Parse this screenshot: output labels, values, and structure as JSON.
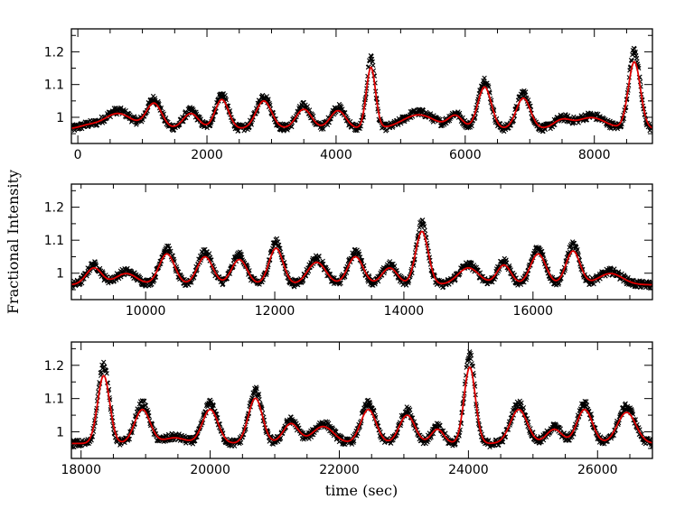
{
  "chart_data": {
    "type": "line",
    "ylabel": "Fractional Intensity",
    "xlabel": "time (sec)",
    "colors": {
      "observed": "#000000",
      "model": "#e00000"
    },
    "panels": [
      {
        "xlim": [
          -100,
          8900
        ],
        "ylim": [
          0.92,
          1.27
        ],
        "xticks": [
          0,
          2000,
          4000,
          6000,
          8000
        ],
        "yticks": [
          1,
          1.1,
          1.2
        ],
        "peaks": [
          {
            "t": 150,
            "amp": 0.01,
            "w": 120
          },
          {
            "t": 620,
            "amp": 0.055,
            "w": 200
          },
          {
            "t": 1180,
            "amp": 0.09,
            "w": 110
          },
          {
            "t": 1750,
            "amp": 0.055,
            "w": 110
          },
          {
            "t": 2230,
            "amp": 0.105,
            "w": 95
          },
          {
            "t": 2880,
            "amp": 0.1,
            "w": 110
          },
          {
            "t": 3500,
            "amp": 0.07,
            "w": 110
          },
          {
            "t": 4030,
            "amp": 0.065,
            "w": 110
          },
          {
            "t": 4540,
            "amp": 0.22,
            "w": 65
          },
          {
            "t": 5280,
            "amp": 0.05,
            "w": 230
          },
          {
            "t": 5850,
            "amp": 0.045,
            "w": 100
          },
          {
            "t": 6300,
            "amp": 0.15,
            "w": 95
          },
          {
            "t": 6900,
            "amp": 0.11,
            "w": 100
          },
          {
            "t": 7500,
            "amp": 0.03,
            "w": 120
          },
          {
            "t": 7950,
            "amp": 0.04,
            "w": 200
          },
          {
            "t": 8620,
            "amp": 0.24,
            "w": 85
          }
        ]
      },
      {
        "xlim": [
          8850,
          17850
        ],
        "ylim": [
          0.92,
          1.27
        ],
        "xticks": [
          10000,
          12000,
          14000,
          16000
        ],
        "yticks": [
          1,
          1.1,
          1.2
        ],
        "peaks": [
          {
            "t": 9200,
            "amp": 0.06,
            "w": 110
          },
          {
            "t": 9700,
            "amp": 0.04,
            "w": 150
          },
          {
            "t": 10330,
            "amp": 0.11,
            "w": 110
          },
          {
            "t": 10920,
            "amp": 0.1,
            "w": 110
          },
          {
            "t": 11450,
            "amp": 0.09,
            "w": 110
          },
          {
            "t": 12020,
            "amp": 0.13,
            "w": 100
          },
          {
            "t": 12650,
            "amp": 0.08,
            "w": 130
          },
          {
            "t": 13250,
            "amp": 0.1,
            "w": 110
          },
          {
            "t": 13780,
            "amp": 0.06,
            "w": 110
          },
          {
            "t": 14280,
            "amp": 0.19,
            "w": 90
          },
          {
            "t": 15000,
            "amp": 0.06,
            "w": 150
          },
          {
            "t": 15550,
            "amp": 0.07,
            "w": 100
          },
          {
            "t": 16080,
            "amp": 0.11,
            "w": 110
          },
          {
            "t": 16620,
            "amp": 0.12,
            "w": 100
          },
          {
            "t": 17200,
            "amp": 0.04,
            "w": 170
          }
        ]
      },
      {
        "xlim": [
          17850,
          26850
        ],
        "ylim": [
          0.92,
          1.27
        ],
        "xticks": [
          18000,
          20000,
          22000,
          24000,
          26000
        ],
        "yticks": [
          1,
          1.1,
          1.2
        ],
        "peaks": [
          {
            "t": 18350,
            "amp": 0.24,
            "w": 85
          },
          {
            "t": 18950,
            "amp": 0.12,
            "w": 110
          },
          {
            "t": 19450,
            "amp": 0.02,
            "w": 150
          },
          {
            "t": 20000,
            "amp": 0.12,
            "w": 110
          },
          {
            "t": 20700,
            "amp": 0.16,
            "w": 100
          },
          {
            "t": 21250,
            "amp": 0.07,
            "w": 110
          },
          {
            "t": 21750,
            "amp": 0.06,
            "w": 150
          },
          {
            "t": 22450,
            "amp": 0.12,
            "w": 110
          },
          {
            "t": 23050,
            "amp": 0.1,
            "w": 110
          },
          {
            "t": 23520,
            "amp": 0.05,
            "w": 90
          },
          {
            "t": 24020,
            "amp": 0.27,
            "w": 80
          },
          {
            "t": 24780,
            "amp": 0.12,
            "w": 120
          },
          {
            "t": 25330,
            "amp": 0.05,
            "w": 110
          },
          {
            "t": 25800,
            "amp": 0.12,
            "w": 110
          },
          {
            "t": 26450,
            "amp": 0.11,
            "w": 130
          }
        ]
      }
    ]
  }
}
